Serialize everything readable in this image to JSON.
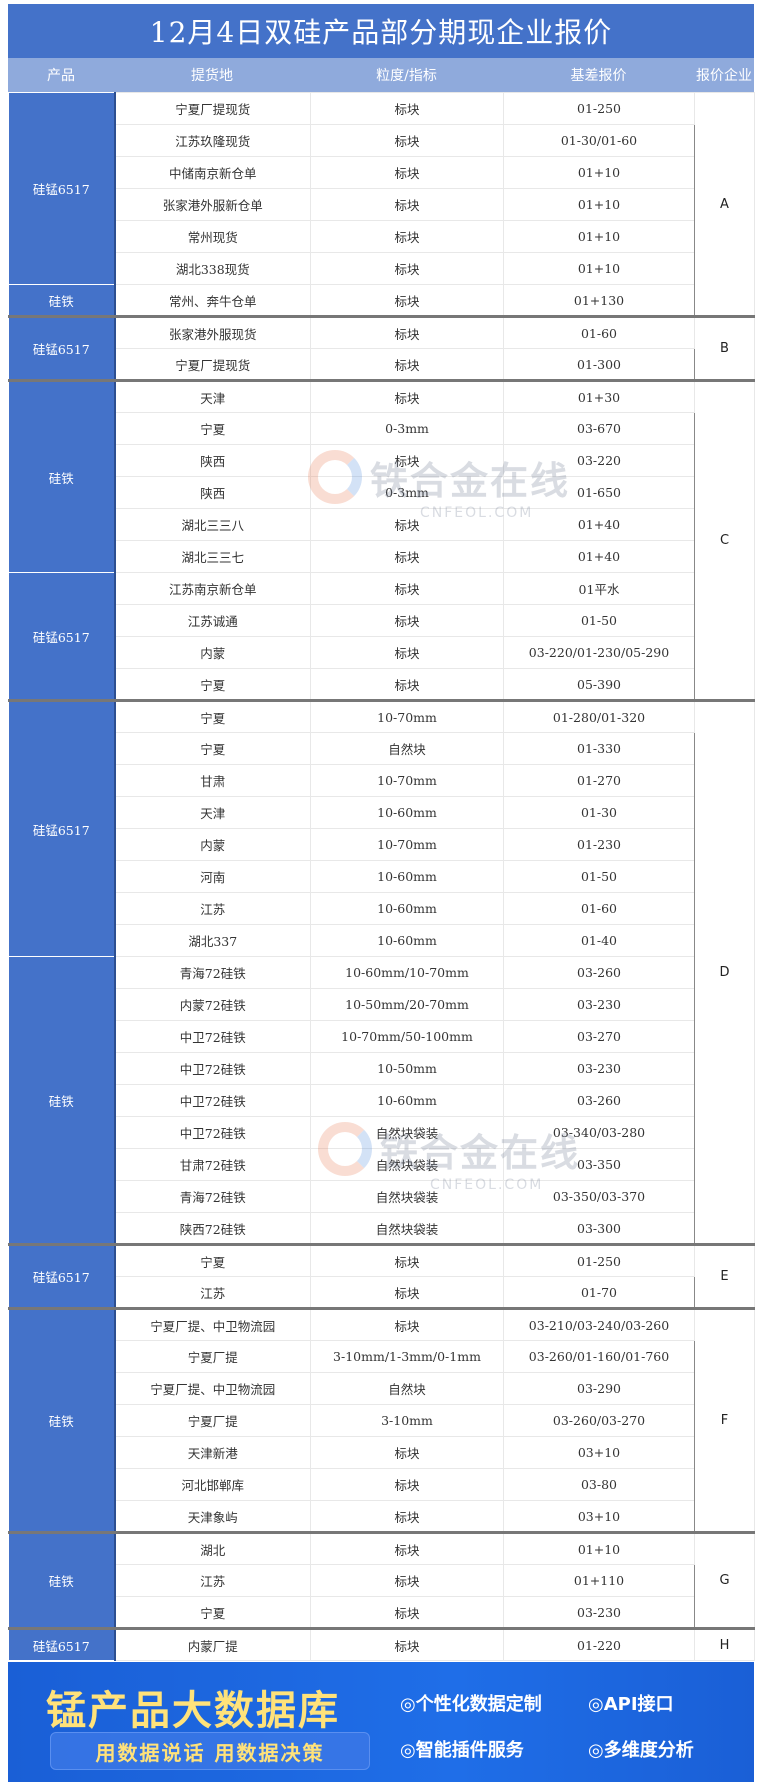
{
  "title": "12月4日双硅产品部分期现企业报价",
  "headers": [
    "产品",
    "提货地",
    "粒度/指标",
    "基差报价",
    "报价企业"
  ],
  "groups": [
    {
      "company": "A",
      "products": [
        {
          "name": "硅锰6517",
          "rows": [
            [
              "宁夏厂提现货",
              "标块",
              "01-250"
            ],
            [
              "江苏玖隆现货",
              "标块",
              "01-30/01-60"
            ],
            [
              "中储南京新仓单",
              "标块",
              "01+10"
            ],
            [
              "张家港外服新仓单",
              "标块",
              "01+10"
            ],
            [
              "常州现货",
              "标块",
              "01+10"
            ],
            [
              "湖北338现货",
              "标块",
              "01+10"
            ]
          ]
        },
        {
          "name": "硅铁",
          "rows": [
            [
              "常州、奔牛仓单",
              "标块",
              "01+130"
            ]
          ]
        }
      ]
    },
    {
      "company": "B",
      "products": [
        {
          "name": "硅锰6517",
          "rows": [
            [
              "张家港外服现货",
              "标块",
              "01-60"
            ],
            [
              "宁夏厂提现货",
              "标块",
              "01-300"
            ]
          ]
        }
      ]
    },
    {
      "company": "C",
      "products": [
        {
          "name": "硅铁",
          "rows": [
            [
              "天津",
              "标块",
              "01+30"
            ],
            [
              "宁夏",
              "0-3mm",
              "03-670"
            ],
            [
              "陕西",
              "标块",
              "03-220"
            ],
            [
              "陕西",
              "0-3mm",
              "01-650"
            ],
            [
              "湖北三三八",
              "标块",
              "01+40"
            ],
            [
              "湖北三三七",
              "标块",
              "01+40"
            ]
          ]
        },
        {
          "name": "硅锰6517",
          "rows": [
            [
              "江苏南京新仓单",
              "标块",
              "01平水"
            ],
            [
              "江苏诚通",
              "标块",
              "01-50"
            ],
            [
              "内蒙",
              "标块",
              "03-220/01-230/05-290"
            ],
            [
              "宁夏",
              "标块",
              "05-390"
            ]
          ]
        }
      ]
    },
    {
      "company": "D",
      "products": [
        {
          "name": "硅锰6517",
          "rows": [
            [
              "宁夏",
              "10-70mm",
              "01-280/01-320"
            ],
            [
              "宁夏",
              "自然块",
              "01-330"
            ],
            [
              "甘肃",
              "10-70mm",
              "01-270"
            ],
            [
              "天津",
              "10-60mm",
              "01-30"
            ],
            [
              "内蒙",
              "10-70mm",
              "01-230"
            ],
            [
              "河南",
              "10-60mm",
              "01-50"
            ],
            [
              "江苏",
              "10-60mm",
              "01-60"
            ],
            [
              "湖北337",
              "10-60mm",
              "01-40"
            ]
          ]
        },
        {
          "name": "硅铁",
          "rows": [
            [
              "青海72硅铁",
              "10-60mm/10-70mm",
              "03-260"
            ],
            [
              "内蒙72硅铁",
              "10-50mm/20-70mm",
              "03-230"
            ],
            [
              "中卫72硅铁",
              "10-70mm/50-100mm",
              "03-270"
            ],
            [
              "中卫72硅铁",
              "10-50mm",
              "03-230"
            ],
            [
              "中卫72硅铁",
              "10-60mm",
              "03-260"
            ],
            [
              "中卫72硅铁",
              "自然块袋装",
              "03-340/03-280"
            ],
            [
              "甘肃72硅铁",
              "自然块袋装",
              "03-350"
            ],
            [
              "青海72硅铁",
              "自然块袋装",
              "03-350/03-370"
            ],
            [
              "陕西72硅铁",
              "自然块袋装",
              "03-300"
            ]
          ]
        }
      ]
    },
    {
      "company": "E",
      "products": [
        {
          "name": "硅锰6517",
          "rows": [
            [
              "宁夏",
              "标块",
              "01-250"
            ],
            [
              "江苏",
              "标块",
              "01-70"
            ]
          ]
        }
      ]
    },
    {
      "company": "F",
      "products": [
        {
          "name": "硅铁",
          "rows": [
            [
              "宁夏厂提、中卫物流园",
              "标块",
              "03-210/03-240/03-260"
            ],
            [
              "宁夏厂提",
              "3-10mm/1-3mm/0-1mm",
              "03-260/01-160/01-760"
            ],
            [
              "宁夏厂提、中卫物流园",
              "自然块",
              "03-290"
            ],
            [
              "宁夏厂提",
              "3-10mm",
              "03-260/03-270"
            ],
            [
              "天津新港",
              "标块",
              "03+10"
            ],
            [
              "河北邯郸库",
              "标块",
              "03-80"
            ],
            [
              "天津象屿",
              "标块",
              "03+10"
            ]
          ]
        }
      ]
    },
    {
      "company": "G",
      "products": [
        {
          "name": "硅铁",
          "rows": [
            [
              "湖北",
              "标块",
              "01+10"
            ],
            [
              "江苏",
              "标块",
              "01+110"
            ],
            [
              "宁夏",
              "标块",
              "03-230"
            ]
          ]
        }
      ]
    },
    {
      "company": "H",
      "products": [
        {
          "name": "硅锰6517",
          "rows": [
            [
              "内蒙厂提",
              "标块",
              "01-220"
            ]
          ]
        }
      ]
    }
  ],
  "watermark": {
    "name": "铁合金在线",
    "url": "CNFEOL.COM"
  },
  "banner": {
    "title": "锰产品大数据库",
    "slogan": "用数据说话 用数据决策",
    "features": [
      "◎个性化数据定制",
      "◎API接口",
      "◎智能插件服务",
      "◎多维度分析"
    ]
  },
  "colors": {
    "primary": "#4472c9",
    "header": "#8faadc",
    "accent": "#ffe27a"
  }
}
